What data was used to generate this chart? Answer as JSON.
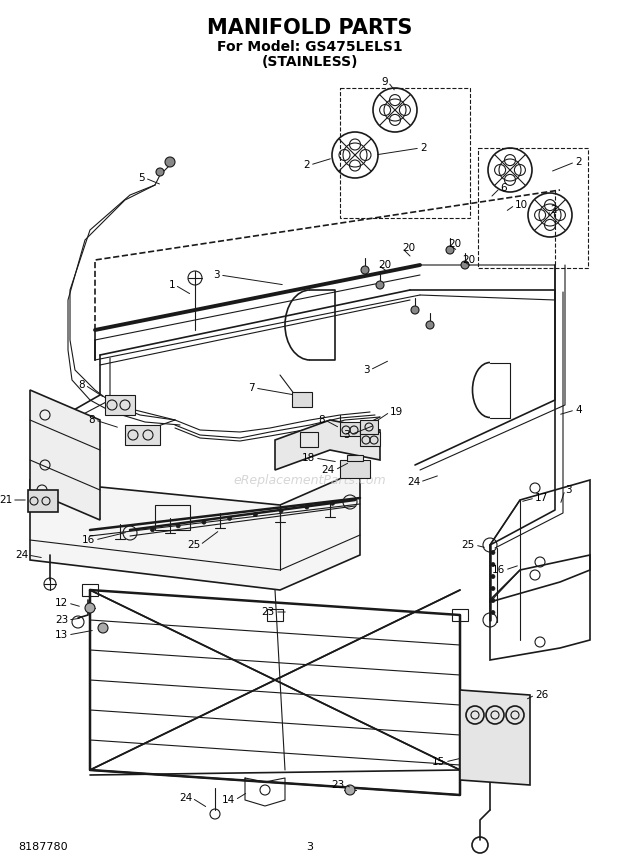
{
  "title": "MANIFOLD PARTS",
  "subtitle1": "For Model: GS475LELS1",
  "subtitle2": "(STAINLESS)",
  "title_fontsize": 15,
  "subtitle_fontsize": 10,
  "bg_color": "#ffffff",
  "line_color": "#1a1a1a",
  "watermark": "eReplacementParts.com",
  "doc_number": "8187780",
  "page_number": "3",
  "fig_w": 6.2,
  "fig_h": 8.56,
  "dpi": 100
}
